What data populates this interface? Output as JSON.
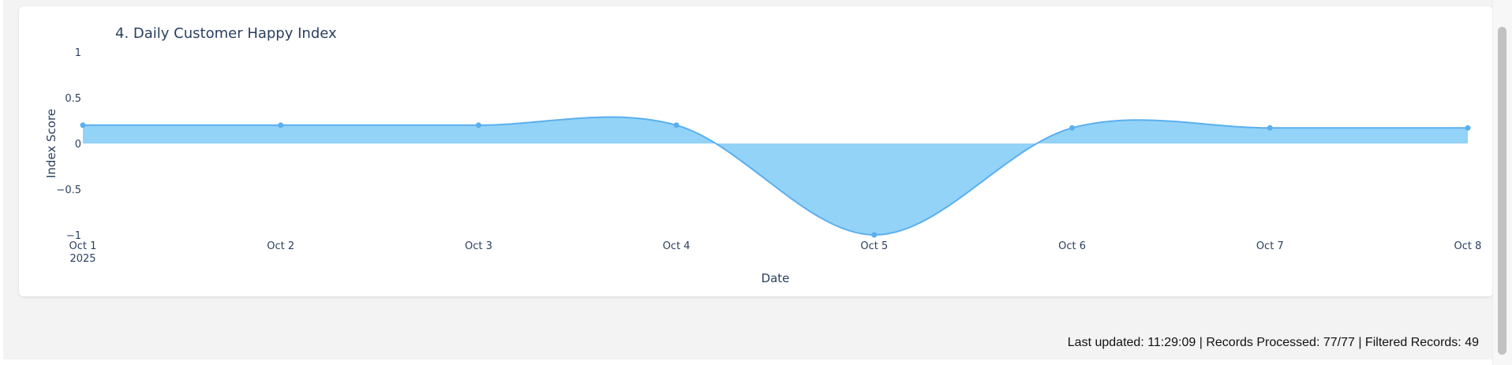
{
  "chart_data": {
    "type": "area",
    "title": "4. Daily Customer Happy Index",
    "xlabel": "Date",
    "ylabel": "Index Score",
    "x": [
      "Oct 1",
      "Oct 2",
      "Oct 3",
      "Oct 4",
      "Oct 5",
      "Oct 6",
      "Oct 7",
      "Oct 8"
    ],
    "x_year": "2025",
    "values": [
      0.2,
      0.2,
      0.2,
      0.2,
      -1,
      0.17,
      0.17,
      0.17
    ],
    "ylim": [
      -1,
      1
    ],
    "yticks": [
      1,
      0.5,
      0,
      -0.5,
      -1
    ],
    "ytick_labels": [
      "1",
      "0.5",
      "0",
      "−0.5",
      "−1"
    ],
    "grid": false,
    "line_shape": "spline",
    "colors": {
      "line": "#5aaff0",
      "fill": "#93d3f7",
      "marker": "#5aaff0",
      "text": "#2a3f5f"
    }
  },
  "status": {
    "text": "Last updated: 11:29:09 | Records Processed: 77/77 | Filtered Records: 49"
  }
}
